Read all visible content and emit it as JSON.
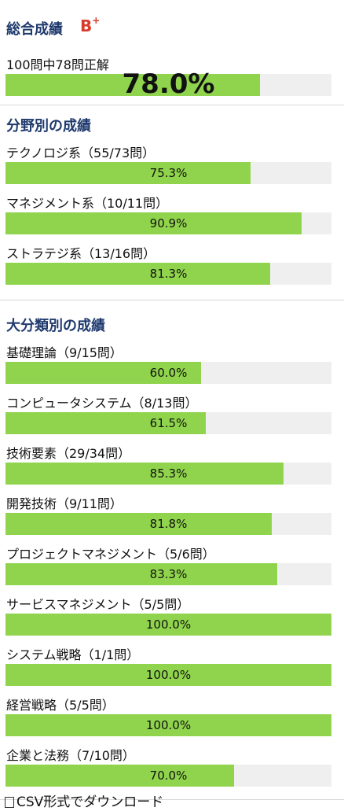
{
  "overall": {
    "title": "総合成績",
    "grade": "B",
    "grade_mod": "+",
    "summary": "100問中78問正解",
    "percent_text": "78.0%",
    "percent": 78.0
  },
  "fields": {
    "title": "分野別の成績",
    "items": [
      {
        "label": "テクノロジ系（55/73問）",
        "percent_text": "75.3%",
        "percent": 75.3
      },
      {
        "label": "マネジメント系（10/11問）",
        "percent_text": "90.9%",
        "percent": 90.9
      },
      {
        "label": "ストラテジ系（13/16問）",
        "percent_text": "81.3%",
        "percent": 81.3
      }
    ]
  },
  "categories": {
    "title": "大分類別の成績",
    "items": [
      {
        "label": "基礎理論（9/15問）",
        "percent_text": "60.0%",
        "percent": 60.0
      },
      {
        "label": "コンピュータシステム（8/13問）",
        "percent_text": "61.5%",
        "percent": 61.5
      },
      {
        "label": "技術要素（29/34問）",
        "percent_text": "85.3%",
        "percent": 85.3
      },
      {
        "label": "開発技術（9/11問）",
        "percent_text": "81.8%",
        "percent": 81.8
      },
      {
        "label": "プロジェクトマネジメント（5/6問）",
        "percent_text": "83.3%",
        "percent": 83.3
      },
      {
        "label": "サービスマネジメント（5/5問）",
        "percent_text": "100.0%",
        "percent": 100.0
      },
      {
        "label": "システム戦略（1/1問）",
        "percent_text": "100.0%",
        "percent": 100.0
      },
      {
        "label": "経営戦略（5/5問）",
        "percent_text": "100.0%",
        "percent": 100.0
      },
      {
        "label": "企業と法務（7/10問）",
        "percent_text": "70.0%",
        "percent": 70.0
      }
    ]
  },
  "download": {
    "label": "CSV形式でダウンロード",
    "icon": "document-icon"
  },
  "colors": {
    "accent_title": "#1f3a6e",
    "grade": "#d93a2b",
    "bar_fill": "#8fd44c",
    "bar_track": "#efefef"
  }
}
